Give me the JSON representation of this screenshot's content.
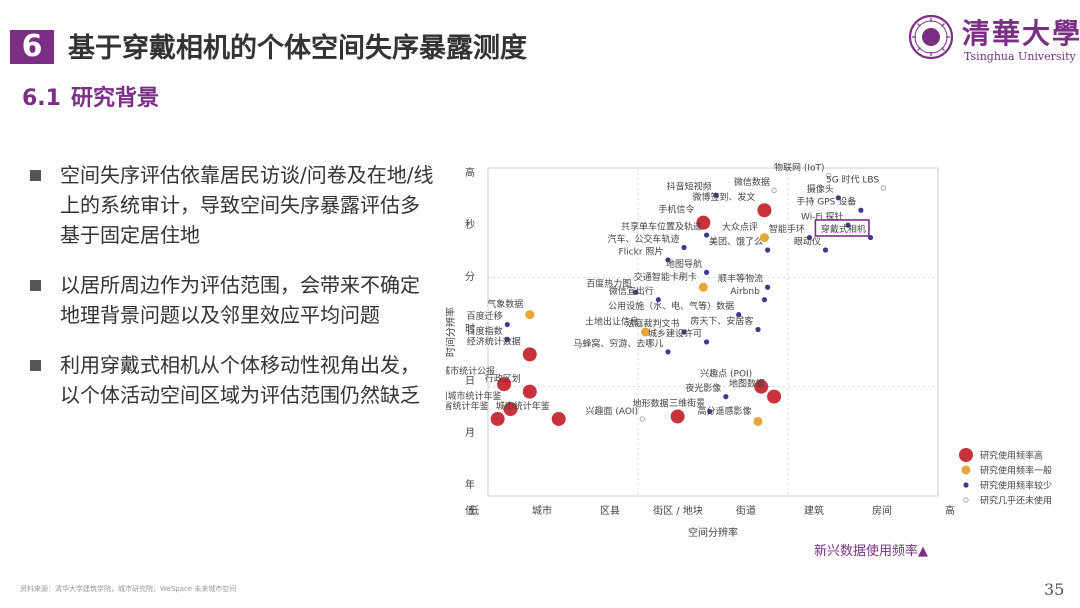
{
  "header": {
    "section_number": "6",
    "title": "基于穿戴相机的个体空间失序暴露测度",
    "subsection_number": "6.1",
    "subsection_title": "研究背景"
  },
  "logo": {
    "name_cn": "清華大學",
    "name_en": "Tsinghua University"
  },
  "bullets": [
    "空间失序评估依靠居民访谈/问卷及在地/线上的系统审计，导致空间失序暴露评估多基于固定居住地",
    "以居所周边作为评估范围，会带来不确定地理背景问题以及邻里效应平均问题",
    "利用穿戴式相机从个体移动性视角出发，以个体活动空间区域为评估范围仍然缺乏"
  ],
  "footer": {
    "source": "资料来源：清华大学建筑学院，城市研究院，WeSpace 未来城市空间",
    "page_number": "35",
    "chart_caption": "新兴数据使用频率▲"
  },
  "colors": {
    "high": "#c8323a",
    "medium": "#e8a63a",
    "low": "#3d3a8c",
    "none": "#999999",
    "brand": "#7a2f85"
  },
  "chart_data": {
    "type": "scatter",
    "xlabel": "空间分辨率",
    "ylabel": "时间分辨率",
    "x_ticks": [
      "低",
      "城市",
      "区县",
      "街区 / 地块",
      "街道",
      "建筑",
      "房间",
      "高"
    ],
    "y_ticks": [
      "年",
      "月",
      "日",
      "时",
      "分",
      "秒",
      "高"
    ],
    "y_low_label": "低",
    "xlim": [
      0,
      7
    ],
    "ylim": [
      0,
      6.6
    ],
    "legend": {
      "position": "bottom-right",
      "entries": [
        {
          "level": "high",
          "label": "研究使用频率高"
        },
        {
          "level": "medium",
          "label": "研究使用频率一般"
        },
        {
          "level": "low",
          "label": "研究使用频率较少"
        },
        {
          "level": "none",
          "label": "研究几乎还未使用"
        }
      ]
    },
    "highlight": "穿戴式相机",
    "points": [
      {
        "label": "物联网 (IoT)",
        "x": 5.3,
        "y": 6.45,
        "level": "none"
      },
      {
        "label": "5G 时代 LBS",
        "x": 6.15,
        "y": 6.2,
        "level": "none"
      },
      {
        "label": "抖音短视频",
        "x": 3.55,
        "y": 6.05,
        "level": "low"
      },
      {
        "label": "微信数据",
        "x": 4.45,
        "y": 6.15,
        "level": "none"
      },
      {
        "label": "摄像头",
        "x": 5.45,
        "y": 6.0,
        "level": "low"
      },
      {
        "label": "微博签到、发文",
        "x": 4.3,
        "y": 5.75,
        "level": "high"
      },
      {
        "label": "手持 GPS 设备",
        "x": 5.8,
        "y": 5.75,
        "level": "low"
      },
      {
        "label": "手机信令",
        "x": 3.35,
        "y": 5.5,
        "level": "high"
      },
      {
        "label": "Wi-Fi 探针",
        "x": 5.6,
        "y": 5.45,
        "level": "low"
      },
      {
        "label": "共享单车位置及轨迹",
        "x": 3.4,
        "y": 5.25,
        "level": "low"
      },
      {
        "label": "大众点评",
        "x": 4.3,
        "y": 5.2,
        "level": "medium"
      },
      {
        "label": "智能手环",
        "x": 5.0,
        "y": 5.2,
        "level": "low"
      },
      {
        "label": "穿戴式相机",
        "x": 5.95,
        "y": 5.2,
        "level": "low"
      },
      {
        "label": "汽车、公交车轨迹",
        "x": 3.05,
        "y": 5.0,
        "level": "low"
      },
      {
        "label": "美团、饿了么",
        "x": 4.35,
        "y": 4.95,
        "level": "low"
      },
      {
        "label": "眼动仪",
        "x": 5.25,
        "y": 4.95,
        "level": "low"
      },
      {
        "label": "Flickr 照片",
        "x": 2.8,
        "y": 4.75,
        "level": "low"
      },
      {
        "label": "地图导航",
        "x": 3.4,
        "y": 4.5,
        "level": "low"
      },
      {
        "label": "交通智能卡刷卡",
        "x": 3.35,
        "y": 4.2,
        "level": "medium"
      },
      {
        "label": "顺丰等物流",
        "x": 4.35,
        "y": 4.2,
        "level": "low"
      },
      {
        "label": "百度热力图",
        "x": 2.3,
        "y": 4.1,
        "level": "low"
      },
      {
        "label": "微信宜出行",
        "x": 2.65,
        "y": 3.95,
        "level": "low"
      },
      {
        "label": "Airbnb",
        "x": 4.3,
        "y": 3.95,
        "level": "low"
      },
      {
        "label": "气象数据",
        "x": 0.65,
        "y": 3.65,
        "level": "medium"
      },
      {
        "label": "公用设施（水、电、气等）数据",
        "x": 3.9,
        "y": 3.65,
        "level": "low"
      },
      {
        "label": "百度迁移",
        "x": 0.3,
        "y": 3.45,
        "level": "low"
      },
      {
        "label": "土地出让信息",
        "x": 2.45,
        "y": 3.3,
        "level": "medium"
      },
      {
        "label": "法庭裁判文书",
        "x": 3.05,
        "y": 3.3,
        "level": "low"
      },
      {
        "label": "房天下、安居客",
        "x": 4.2,
        "y": 3.35,
        "level": "low"
      },
      {
        "label": "百度指数",
        "x": 0.3,
        "y": 3.15,
        "level": "low"
      },
      {
        "label": "城乡建设许可",
        "x": 3.4,
        "y": 3.1,
        "level": "low"
      },
      {
        "label": "经济统计数据",
        "x": 0.65,
        "y": 2.85,
        "level": "high"
      },
      {
        "label": "马蜂窝、穷游、去哪儿",
        "x": 2.8,
        "y": 2.9,
        "level": "low"
      },
      {
        "label": "城市统计公报",
        "x": 0.25,
        "y": 2.25,
        "level": "high"
      },
      {
        "label": "兴趣点 (POI)",
        "x": 4.25,
        "y": 2.2,
        "level": "high"
      },
      {
        "label": "行政区划",
        "x": 0.65,
        "y": 2.1,
        "level": "high"
      },
      {
        "label": "夜光影像",
        "x": 3.7,
        "y": 2.0,
        "level": "low"
      },
      {
        "label": "地图数据",
        "x": 4.45,
        "y": 2.0,
        "level": "high"
      },
      {
        "label": "中国城市统计年鉴",
        "x": 0.35,
        "y": 1.75,
        "level": "high"
      },
      {
        "label": "三维街景",
        "x": 3.45,
        "y": 1.7,
        "level": "low"
      },
      {
        "label": "兴趣面 (AOI)",
        "x": 2.4,
        "y": 1.55,
        "level": "none"
      },
      {
        "label": "地形数据",
        "x": 2.95,
        "y": 1.6,
        "level": "high"
      },
      {
        "label": "高分遥感影像",
        "x": 4.2,
        "y": 1.5,
        "level": "medium"
      },
      {
        "label": "省统计年鉴",
        "x": 0.15,
        "y": 1.55,
        "level": "high"
      },
      {
        "label": "城市统计年鉴",
        "x": 1.1,
        "y": 1.55,
        "level": "high"
      }
    ]
  }
}
